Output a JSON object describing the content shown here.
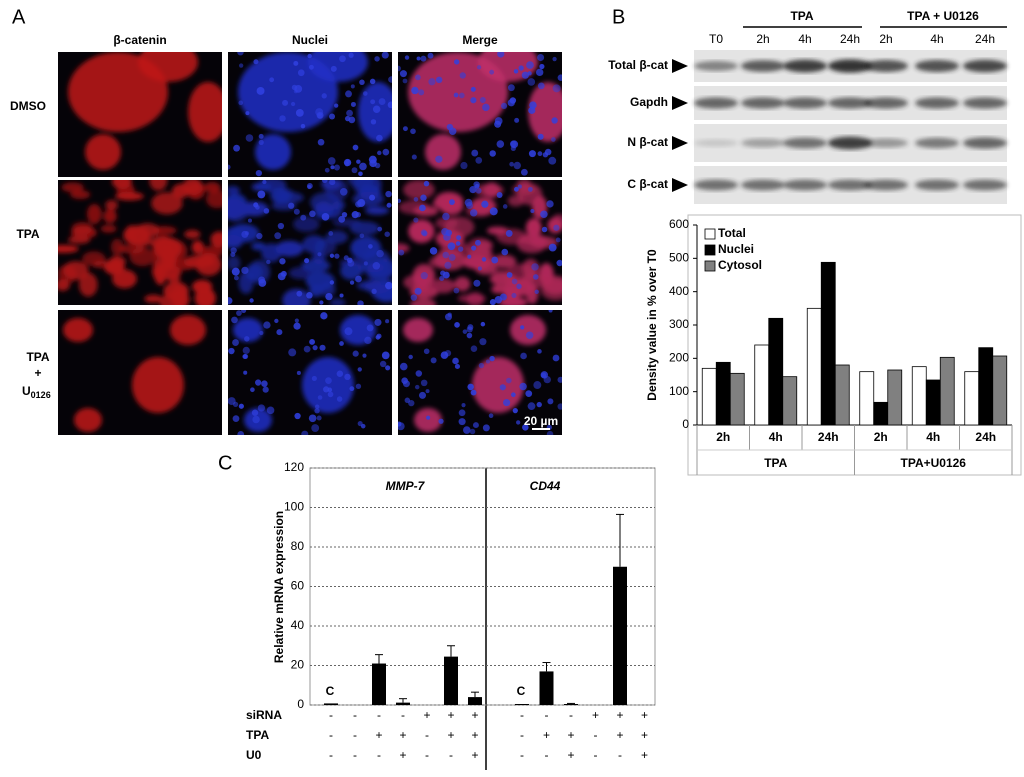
{
  "panel_labels": [
    "A",
    "B",
    "C"
  ],
  "microscopy": {
    "columns": [
      "β-catenin",
      "Nuclei",
      "Merge"
    ],
    "rows": [
      "DMSO",
      "TPA"
    ],
    "row3": [
      "TPA",
      "+",
      "U",
      "0126"
    ],
    "scale_bar": "20 µm"
  },
  "blot": {
    "top_groups": [
      "TPA",
      "TPA + U0126"
    ],
    "lanes": [
      "T0",
      "2h",
      "4h",
      "24h",
      "2h",
      "4h",
      "24h"
    ],
    "rows": [
      "Total β-cat",
      "Gapdh",
      "N β-cat",
      "C β-cat"
    ]
  },
  "chart_data": [
    {
      "type": "bar",
      "ylabel": "Density value in % over T0",
      "categories": [
        "2h",
        "4h",
        "24h",
        "2h",
        "4h",
        "24h"
      ],
      "group_labels": [
        "TPA",
        "TPA+U0126"
      ],
      "series": [
        {
          "name": "Total",
          "color": "#ffffff",
          "values": [
            170,
            240,
            350,
            160,
            175,
            160
          ]
        },
        {
          "name": "Nuclei",
          "color": "#000000",
          "values": [
            188,
            320,
            488,
            68,
            135,
            232
          ]
        },
        {
          "name": "Cytosol",
          "color": "#808080",
          "values": [
            155,
            145,
            180,
            165,
            203,
            207
          ]
        }
      ],
      "ylim": [
        0,
        600
      ],
      "yticks": [
        0,
        100,
        200,
        300,
        400,
        500,
        600
      ],
      "legend": "upper left"
    },
    {
      "type": "errorbar",
      "ylabel": "Relative mRNA expression",
      "color": "#000000",
      "ylim": [
        0,
        120
      ],
      "yticks": [
        0,
        20,
        40,
        60,
        80,
        100,
        120
      ],
      "grid": true,
      "row_labels": [
        "siRNA",
        "TPA",
        "U0"
      ],
      "control_label": "C",
      "panels": [
        {
          "title": "MMP-7",
          "values": [
            0.8,
            0,
            21,
            1.2,
            0,
            24.5,
            4
          ],
          "errors": [
            0,
            0,
            4.5,
            2,
            0,
            5.5,
            2.5
          ],
          "signs": [
            [
              "-",
              "-",
              "-",
              "-",
              "+",
              "+",
              "+"
            ],
            [
              "-",
              "-",
              "+",
              "+",
              "-",
              "+",
              "+"
            ],
            [
              "-",
              "-",
              "-",
              "+",
              "-",
              "-",
              "+"
            ]
          ]
        },
        {
          "title": "CD44",
          "values": [
            0.5,
            17,
            0.5,
            0,
            70,
            0
          ],
          "errors": [
            0,
            4.5,
            0.3,
            0,
            26.5,
            0
          ],
          "signs": [
            [
              "-",
              "-",
              "-",
              "+",
              "+",
              "+"
            ],
            [
              "-",
              "+",
              "+",
              "-",
              "+",
              "+"
            ],
            [
              "-",
              "-",
              "+",
              "-",
              "-",
              "+"
            ]
          ]
        }
      ]
    }
  ]
}
